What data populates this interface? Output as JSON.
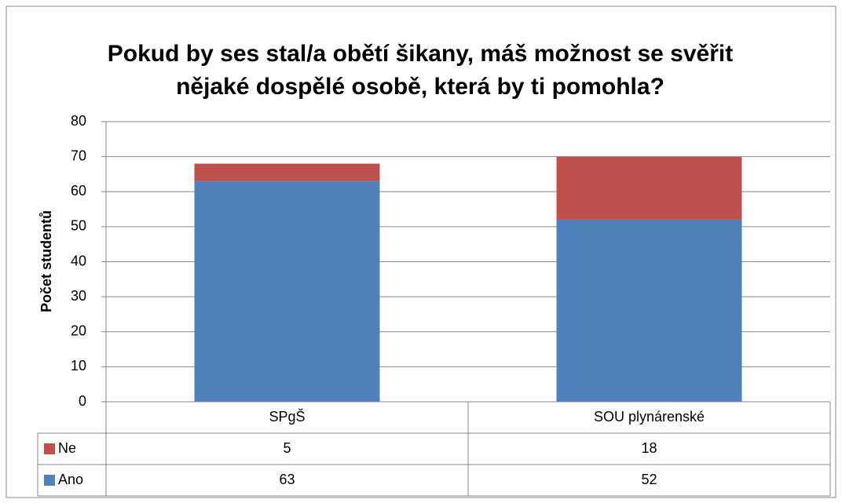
{
  "chart_data": {
    "type": "stacked_bar",
    "title": "Pokud by ses stal/a obětí šikany, máš možnost se svěřit nějaké dospělé osobě, která by ti pomohla?",
    "y_label": "Počet studentů",
    "categories": [
      "SPgŠ",
      "SOU plynárenské"
    ],
    "series": [
      {
        "name": "Ano",
        "color": "#4f81bd",
        "values": [
          63,
          52
        ]
      },
      {
        "name": "Ne",
        "color": "#c0504d",
        "values": [
          5,
          18
        ]
      }
    ],
    "ylim": [
      0,
      80
    ],
    "yticks": [
      0,
      10,
      20,
      30,
      40,
      50,
      60,
      70,
      80
    ],
    "grid": true,
    "data_table": true
  }
}
